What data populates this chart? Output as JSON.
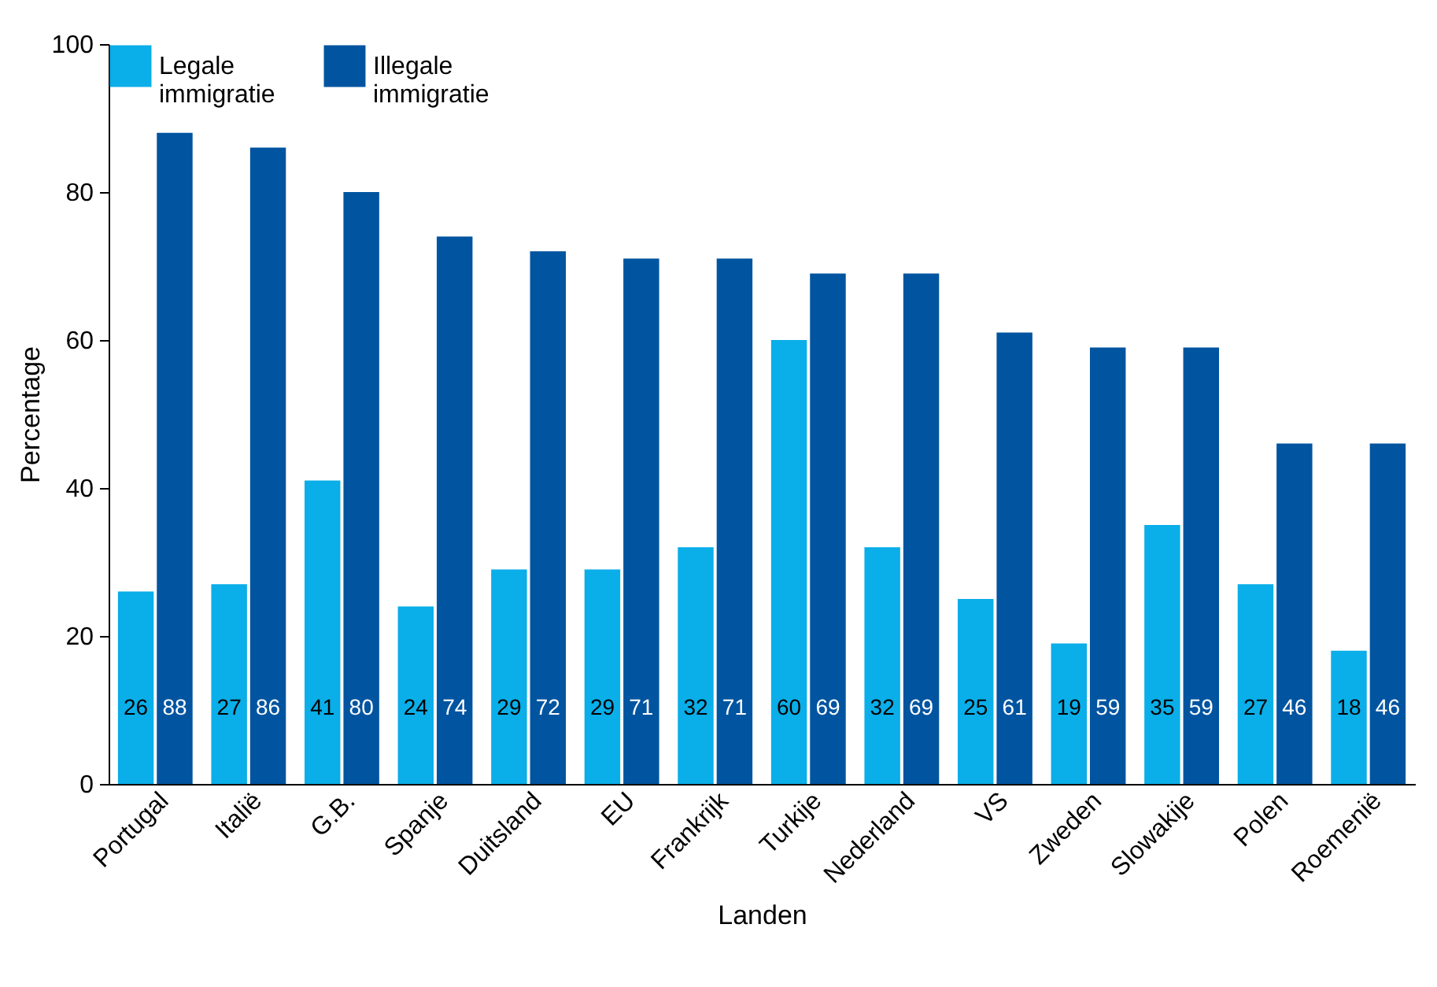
{
  "chart_data": {
    "type": "bar",
    "xlabel": "Landen",
    "ylabel": "Percentage",
    "categories": [
      "Portugal",
      "Italië",
      "G.B.",
      "Spanje",
      "Duitsland",
      "EU",
      "Frankrijk",
      "Turkije",
      "Nederland",
      "VS",
      "Zweden",
      "Slowakije",
      "Polen",
      "Roemenië"
    ],
    "series": [
      {
        "name": "Legale immigratie",
        "color": "#0aaee8",
        "values": [
          26,
          27,
          41,
          24,
          29,
          29,
          32,
          60,
          32,
          25,
          19,
          35,
          27,
          18
        ]
      },
      {
        "name": "Illegale immigratie",
        "color": "#0054a0",
        "values": [
          88,
          86,
          80,
          74,
          72,
          71,
          71,
          69,
          69,
          61,
          59,
          59,
          46,
          46
        ]
      }
    ],
    "ylim": [
      0,
      100
    ],
    "yticks": [
      0,
      20,
      40,
      60,
      80,
      100
    ],
    "grid": false,
    "legend": "top",
    "data_labels": true
  }
}
